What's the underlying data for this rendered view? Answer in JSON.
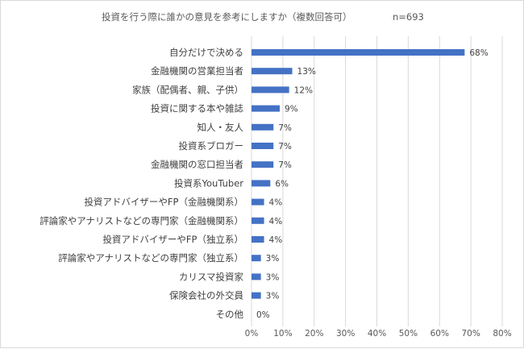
{
  "chart_data": {
    "type": "bar",
    "orientation": "horizontal",
    "title": "投資を行う際に誰かの意見を参考にしますか（複数回答可）",
    "note": "n=693",
    "categories": [
      "自分だけで決める",
      "金融機関の営業担当者",
      "家族（配偶者、親、子供）",
      "投資に関する本や雑誌",
      "知人・友人",
      "投資系ブロガー",
      "金融機関の窓口担当者",
      "投資系YouTuber",
      "投資アドバイザーやFP（金融機関系）",
      "評論家やアナリストなどの専門家（金融機関系）",
      "投資アドバイザーやFP（独立系）",
      "評論家やアナリストなどの専門家（独立系）",
      "カリスマ投資家",
      "保険会社の外交員",
      "その他"
    ],
    "values": [
      68,
      13,
      12,
      9,
      7,
      7,
      7,
      6,
      4,
      4,
      4,
      3,
      3,
      3,
      0
    ],
    "value_labels": [
      "68%",
      "13%",
      "12%",
      "9%",
      "7%",
      "7%",
      "7%",
      "6%",
      "4%",
      "4%",
      "4%",
      "3%",
      "3%",
      "3%",
      "0%"
    ],
    "xlim": [
      0,
      80
    ],
    "xticks": [
      "0%",
      "10%",
      "20%",
      "30%",
      "40%",
      "50%",
      "60%",
      "70%",
      "80%"
    ],
    "grid": true,
    "legend": "none",
    "bar_color": "#4472c4"
  }
}
